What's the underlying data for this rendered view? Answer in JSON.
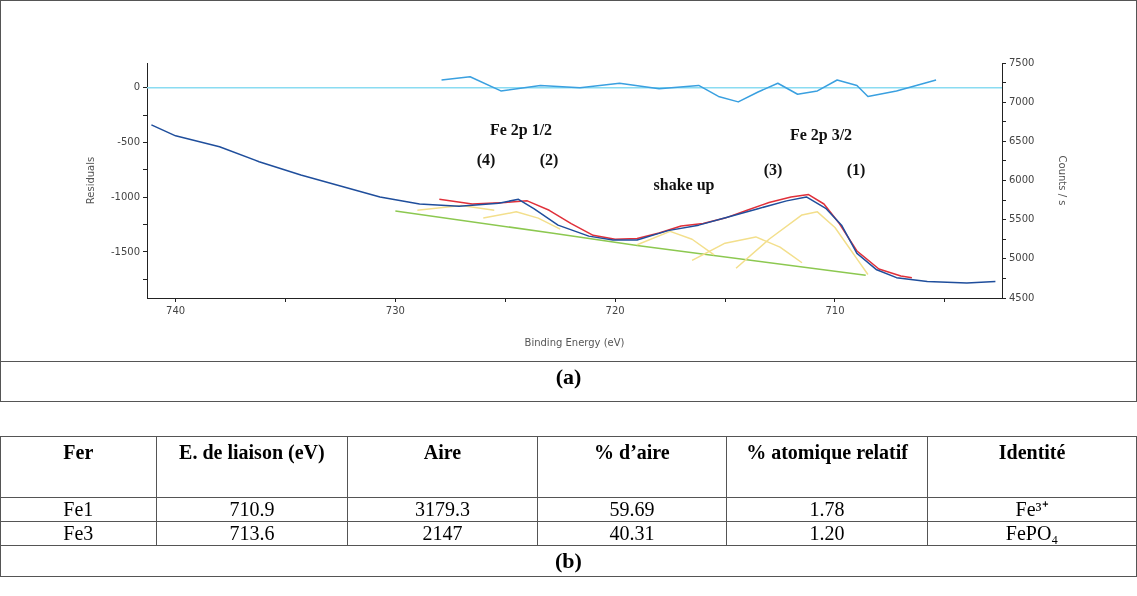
{
  "chart_data": [
    {
      "type": "line",
      "xlabel": "Binding Energy (eV)",
      "ylabel": "Residuals",
      "y2label": "Counts / s",
      "marker": "none",
      "xlim": [
        741.3,
        702.4
      ],
      "xticks": [
        740,
        {
          "value": 735,
          "label": null
        },
        730,
        {
          "value": 725,
          "label": null
        },
        720,
        {
          "value": 715,
          "label": null
        },
        710,
        {
          "value": 705,
          "label": null
        }
      ],
      "ylim": [
        -1920,
        225
      ],
      "yticks": [
        0,
        {
          "value": -250,
          "label": null
        },
        -500,
        {
          "value": -750,
          "label": null
        },
        -1000,
        {
          "value": -1250,
          "label": null
        },
        -1500,
        {
          "value": -1750,
          "label": null
        }
      ],
      "y2lim": [
        4500,
        7500
      ],
      "y2ticks": [
        4500,
        {
          "value": 4750,
          "label": null
        },
        5000,
        {
          "value": 5250,
          "label": null
        },
        5500,
        {
          "value": 5750,
          "label": null
        },
        6000,
        {
          "value": 6250,
          "label": null
        },
        6500,
        {
          "value": 6750,
          "label": null
        },
        7000,
        {
          "value": 7250,
          "label": null
        },
        7500
      ],
      "ref_lines": [
        {
          "axis": "y",
          "value": 0,
          "color": "#8adcf2"
        }
      ],
      "series": [
        {
          "axis": "y2",
          "color": "#8cc850",
          "x": [
            730,
            722.9,
            719,
            708.6
          ],
          "values": [
            5610,
            5330,
            5170,
            4790
          ]
        },
        {
          "axis": "y2",
          "color": "#f3df8c",
          "x": [
            729,
            727,
            725.5
          ],
          "values": [
            5620,
            5680,
            5620
          ]
        },
        {
          "axis": "y2",
          "color": "#f3df8c",
          "x": [
            726,
            724.5,
            723.5,
            722.5
          ],
          "values": [
            5520,
            5600,
            5520,
            5380
          ]
        },
        {
          "axis": "y2",
          "color": "#f3df8c",
          "x": [
            719,
            717.5,
            716.5,
            715.5
          ],
          "values": [
            5180,
            5350,
            5250,
            5050
          ]
        },
        {
          "axis": "y2",
          "color": "#f3df8c",
          "x": [
            716.5,
            715,
            713.6,
            712.5,
            711.5
          ],
          "values": [
            4980,
            5200,
            5280,
            5150,
            4950
          ]
        },
        {
          "axis": "y2",
          "color": "#f3df8c",
          "x": [
            714.5,
            713,
            711.5,
            710.8,
            710,
            709,
            708.5
          ],
          "values": [
            4880,
            5250,
            5560,
            5600,
            5400,
            5000,
            4800
          ]
        },
        {
          "axis": "y2",
          "color": "#e0303a",
          "x": [
            728,
            726.5,
            725,
            724,
            723,
            722,
            721,
            720,
            719,
            718,
            717,
            716,
            715,
            714,
            713,
            712,
            711.2,
            710.5,
            709.8,
            709,
            708,
            707,
            706.5
          ],
          "values": [
            5760,
            5700,
            5720,
            5740,
            5620,
            5450,
            5300,
            5250,
            5260,
            5330,
            5420,
            5450,
            5520,
            5620,
            5720,
            5790,
            5820,
            5700,
            5450,
            5100,
            4870,
            4780,
            4760
          ]
        },
        {
          "axis": "y2",
          "color": "#1f4e9c",
          "x": [
            741.1,
            740,
            738,
            736.2,
            734.3,
            732.5,
            730.7,
            728.9,
            727.1,
            725.3,
            724.4,
            723.7,
            722.6,
            721.2,
            720.1,
            719,
            717.6,
            716.2,
            714.9,
            713.5,
            712.2,
            711.3,
            710.4,
            709.7,
            709,
            708.1,
            707.2,
            705.8,
            704,
            702.7
          ],
          "values": [
            6710,
            6570,
            6430,
            6240,
            6070,
            5930,
            5790,
            5700,
            5670,
            5710,
            5760,
            5640,
            5430,
            5290,
            5240,
            5240,
            5360,
            5430,
            5530,
            5640,
            5740,
            5790,
            5640,
            5430,
            5070,
            4860,
            4760,
            4710,
            4690,
            4710
          ]
        },
        {
          "axis": "y",
          "color": "#3aa0e0",
          "x": [
            727.9,
            726.6,
            725.2,
            723.4,
            721.6,
            719.8,
            718,
            716.2,
            715.3,
            714.4,
            713.5,
            712.6,
            711.7,
            710.8,
            709.9,
            709,
            708.5,
            707.2,
            705.4
          ],
          "values": [
            70,
            100,
            -30,
            20,
            0,
            40,
            -10,
            20,
            -80,
            -130,
            -40,
            40,
            -60,
            -30,
            70,
            20,
            -80,
            -30,
            70
          ]
        }
      ],
      "annotations": [
        "Fe 2p 1/2",
        "(4)",
        "(2)",
        "shake up",
        "(3)",
        "(1)",
        "Fe 2p 3/2",
        "(a)"
      ]
    },
    {
      "type": "other",
      "categories": [
        "Fer",
        "E. de liaison (eV)",
        "Aire",
        "% d’aire",
        "% atomique relatif",
        "Identité"
      ],
      "cell_labels": [
        [
          "Fe1",
          "710.9",
          "3179.3",
          "59.69",
          "1.78",
          "Fe³⁺"
        ],
        [
          "Fe3",
          "713.6",
          "2147",
          "40.31",
          "1.20",
          "FePO₄"
        ]
      ],
      "annotations": [
        "(b)"
      ]
    }
  ]
}
